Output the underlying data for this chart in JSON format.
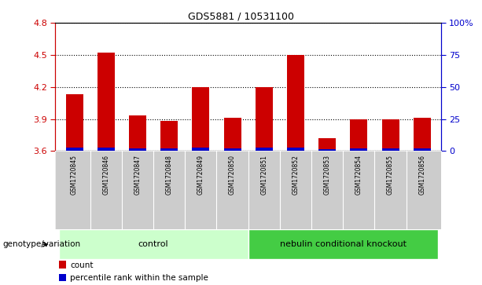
{
  "title": "GDS5881 / 10531100",
  "samples": [
    "GSM1720845",
    "GSM1720846",
    "GSM1720847",
    "GSM1720848",
    "GSM1720849",
    "GSM1720850",
    "GSM1720851",
    "GSM1720852",
    "GSM1720853",
    "GSM1720854",
    "GSM1720855",
    "GSM1720856"
  ],
  "red_values": [
    4.13,
    4.52,
    3.93,
    3.88,
    4.2,
    3.91,
    4.2,
    4.5,
    3.72,
    3.9,
    3.9,
    3.91
  ],
  "blue_heights": [
    0.03,
    0.035,
    0.028,
    0.028,
    0.03,
    0.028,
    0.03,
    0.03,
    0.02,
    0.028,
    0.028,
    0.028
  ],
  "ylim_left": [
    3.6,
    4.8
  ],
  "left_ticks": [
    3.6,
    3.9,
    4.2,
    4.5,
    4.8
  ],
  "right_ticks": [
    0,
    25,
    50,
    75,
    100
  ],
  "right_tick_labels": [
    "0",
    "25",
    "50",
    "75",
    "100%"
  ],
  "bar_width": 0.55,
  "control_color": "#ccffcc",
  "knockout_color": "#44cc44",
  "sample_bg_color": "#cccccc",
  "left_axis_color": "#cc0000",
  "right_axis_color": "#0000cc",
  "red_color": "#cc0000",
  "blue_color": "#0000cc",
  "baseline": 3.6
}
